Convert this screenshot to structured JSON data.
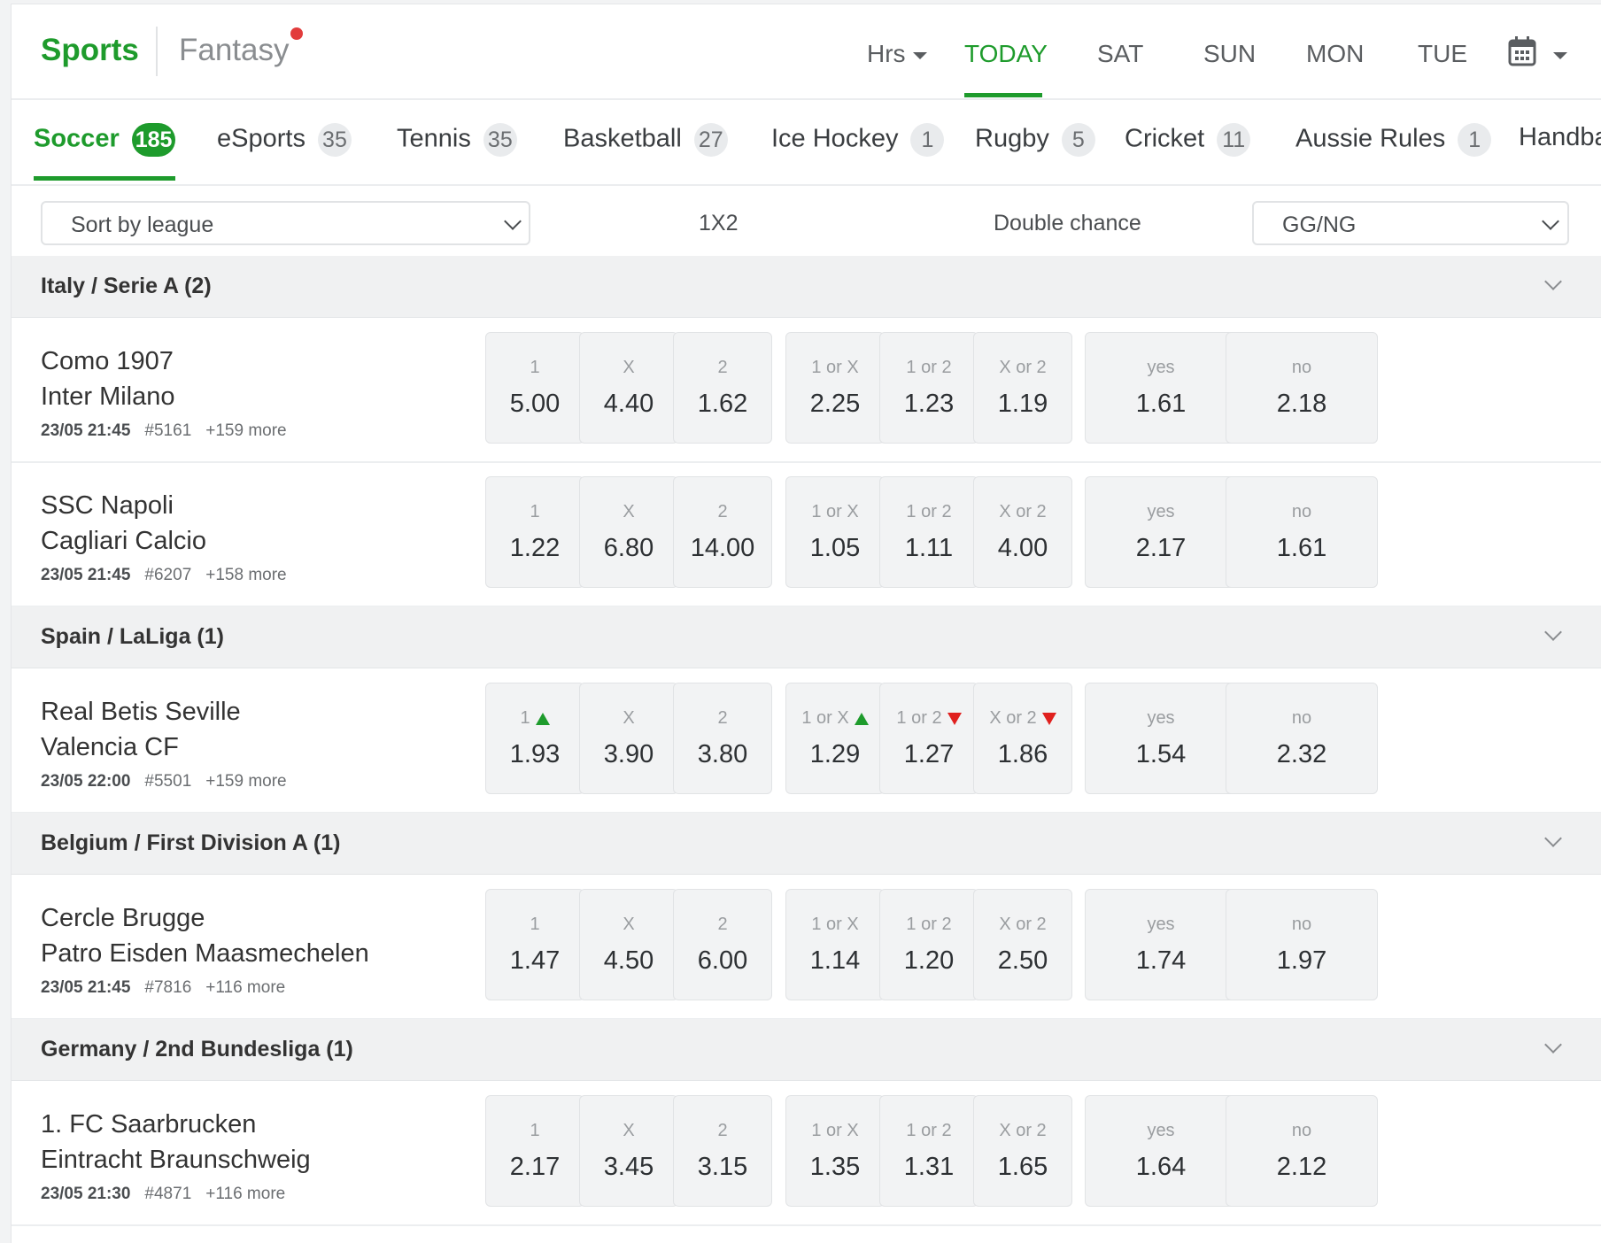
{
  "brand": {
    "sports": "Sports",
    "fantasy": "Fantasy"
  },
  "date_nav": {
    "hrs": "Hrs",
    "today": "TODAY",
    "sat": "SAT",
    "sun": "SUN",
    "mon": "MON",
    "tue": "TUE",
    "calendar_icon": "calendar-icon"
  },
  "sports_tabs": [
    {
      "label": "Soccer",
      "count": "185"
    },
    {
      "label": "eSports",
      "count": "35"
    },
    {
      "label": "Tennis",
      "count": "35"
    },
    {
      "label": "Basketball",
      "count": "27"
    },
    {
      "label": "Ice Hockey",
      "count": "1"
    },
    {
      "label": "Rugby",
      "count": "5"
    },
    {
      "label": "Cricket",
      "count": "11"
    },
    {
      "label": "Aussie Rules",
      "count": "1"
    },
    {
      "label": "Handba"
    }
  ],
  "filters": {
    "sort_by": "Sort by league",
    "market_1x2": "1X2",
    "market_double": "Double chance",
    "market_select": "GG/NG"
  },
  "labels": {
    "m1": "1",
    "mx": "X",
    "m2": "2",
    "d1x": "1 or X",
    "d12": "1 or 2",
    "dx2": "X or 2",
    "yes": "yes",
    "no": "no"
  },
  "leagues": [
    {
      "title": "Italy / Serie A (2)",
      "matches": [
        {
          "home": "Como 1907",
          "away": "Inter Milano",
          "time": "23/05 21:45",
          "id": "#5161",
          "more": "+159 more",
          "odds": {
            "m1": "5.00",
            "mx": "4.40",
            "m2": "1.62",
            "d1x": "2.25",
            "d12": "1.23",
            "dx2": "1.19",
            "yes": "1.61",
            "no": "2.18"
          }
        },
        {
          "home": "SSC Napoli",
          "away": "Cagliari Calcio",
          "time": "23/05 21:45",
          "id": "#6207",
          "more": "+158 more",
          "odds": {
            "m1": "1.22",
            "mx": "6.80",
            "m2": "14.00",
            "d1x": "1.05",
            "d12": "1.11",
            "dx2": "4.00",
            "yes": "2.17",
            "no": "1.61"
          }
        }
      ]
    },
    {
      "title": "Spain / LaLiga (1)",
      "matches": [
        {
          "home": "Real Betis Seville",
          "away": "Valencia CF",
          "time": "23/05 22:00",
          "id": "#5501",
          "more": "+159 more",
          "odds": {
            "m1": "1.93",
            "mx": "3.90",
            "m2": "3.80",
            "d1x": "1.29",
            "d12": "1.27",
            "dx2": "1.86",
            "yes": "1.54",
            "no": "2.32"
          },
          "movement": {
            "m1": "up",
            "d1x": "up",
            "d12": "down",
            "dx2": "down"
          }
        }
      ]
    },
    {
      "title": "Belgium / First Division A (1)",
      "matches": [
        {
          "home": "Cercle Brugge",
          "away": "Patro Eisden Maasmechelen",
          "time": "23/05 21:45",
          "id": "#7816",
          "more": "+116 more",
          "odds": {
            "m1": "1.47",
            "mx": "4.50",
            "m2": "6.00",
            "d1x": "1.14",
            "d12": "1.20",
            "dx2": "2.50",
            "yes": "1.74",
            "no": "1.97"
          }
        }
      ]
    },
    {
      "title": "Germany / 2nd Bundesliga (1)",
      "matches": [
        {
          "home": "1. FC Saarbrucken",
          "away": "Eintracht Braunschweig",
          "time": "23/05 21:30",
          "id": "#4871",
          "more": "+116 more",
          "odds": {
            "m1": "2.17",
            "mx": "3.45",
            "m2": "3.15",
            "d1x": "1.35",
            "d12": "1.31",
            "dx2": "1.65",
            "yes": "1.64",
            "no": "2.12"
          }
        }
      ]
    }
  ],
  "colors": {
    "accent": "#1e9b2c",
    "up": "#1e9b2c",
    "down": "#e0201e",
    "dot": "#e23c3c"
  }
}
